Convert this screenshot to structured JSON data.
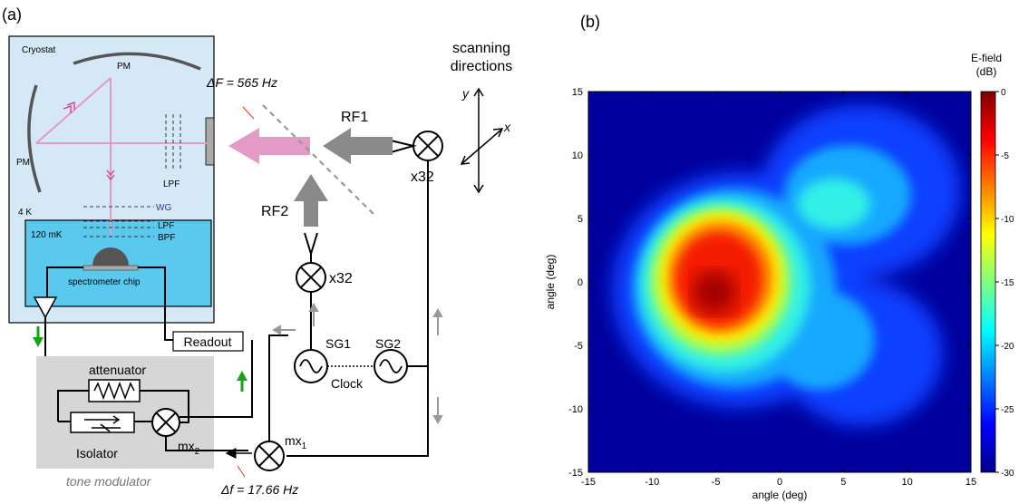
{
  "panel_a": {
    "tag": "(a)",
    "cryostat": "Cryostat",
    "pm_top": "PM",
    "pm_left": "PM",
    "lpf_right": "LPF",
    "temp_4k": "4 K",
    "temp_120mk": "120 mK",
    "wg": "WG",
    "lpf_small": "LPF",
    "bpf": "BPF",
    "chip": "spectrometer chip",
    "readout": "Readout",
    "attenuator": "attenuator",
    "isolator": "Isolator",
    "mx2_base": "mx",
    "mx2_sub": "2",
    "mx1_base": "mx",
    "mx1_sub": "1",
    "tone_modulator": "tone modulator",
    "delta_f": "Δf = 17.66 Hz",
    "delta_F": "ΔF = 565 Hz",
    "rf1": "RF1",
    "rf2": "RF2",
    "x32_right": "x32",
    "x32_lower": "x32",
    "sg1": "SG1",
    "sg2": "SG2",
    "clock": "Clock",
    "scan_line1": "scanning",
    "scan_line2": "directions",
    "axis_x": "x",
    "axis_y": "y"
  },
  "panel_b": {
    "tag": "(b)",
    "colorbar_title_line1": "E-field",
    "colorbar_title_line2": "(dB)"
  },
  "chart_data": {
    "type": "heatmap",
    "xlabel": "angle (deg)",
    "ylabel": "angle (deg)",
    "xlim": [
      -15,
      15
    ],
    "ylim": [
      -15,
      15
    ],
    "xticks": [
      -15,
      -10,
      -5,
      0,
      5,
      10,
      15
    ],
    "yticks": [
      15,
      10,
      5,
      0,
      -5,
      -10,
      -15
    ],
    "colorbar": {
      "label": "E-field (dB)",
      "range": [
        -30,
        0
      ],
      "ticks": [
        0,
        -5,
        -10,
        -15,
        -20,
        -25,
        -30
      ]
    },
    "peak": {
      "x": -5,
      "y": -1.5,
      "value": 0
    },
    "colors": {
      "max": "#800000",
      "min": "#00008f"
    }
  }
}
